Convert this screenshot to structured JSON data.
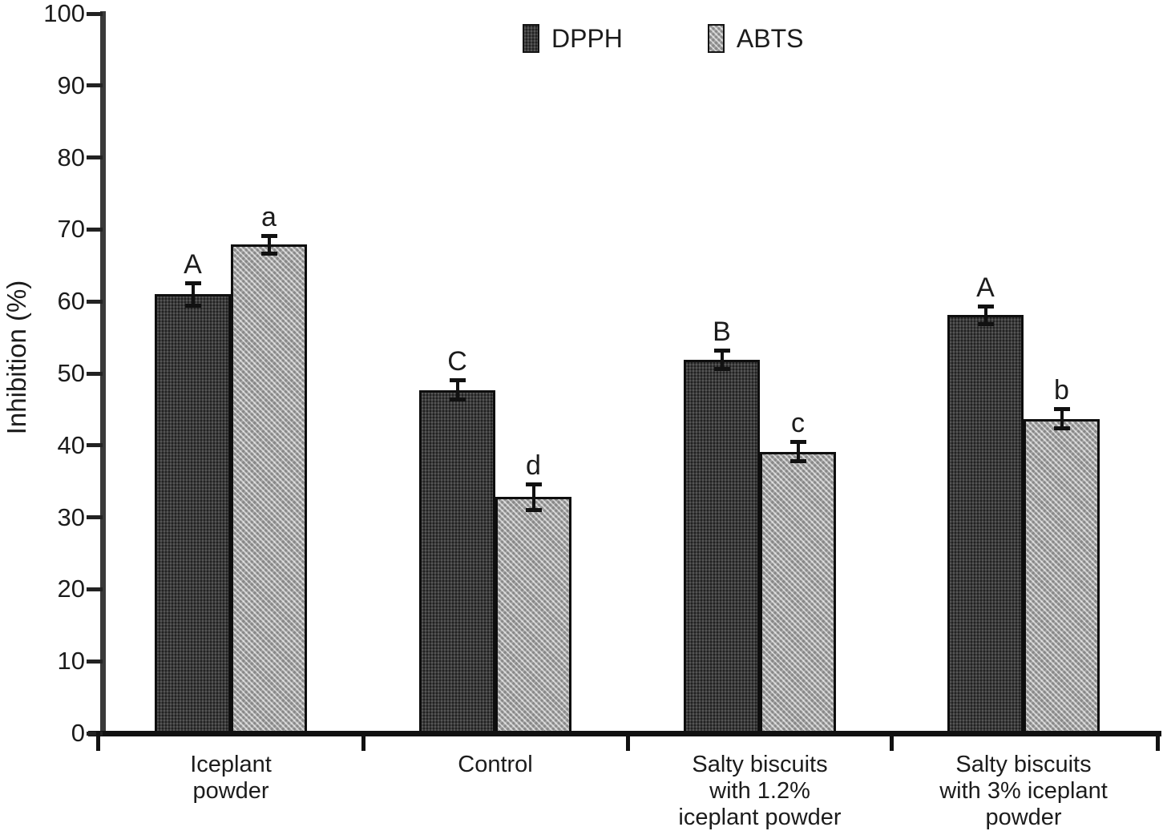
{
  "chart_data": {
    "type": "bar",
    "title": "",
    "ylabel": "Inhibition (%)",
    "xlabel": "",
    "ylim": [
      0,
      100
    ],
    "ytick_interval": 10,
    "yticks": [
      0,
      10,
      20,
      30,
      40,
      50,
      60,
      70,
      80,
      90,
      100
    ],
    "grid": false,
    "legend_position": "top-center",
    "categories": [
      "Iceplant powder",
      "Control",
      "Salty biscuits with 1.2% iceplant powder",
      "Salty biscuits with 3% iceplant powder"
    ],
    "category_label_lines": [
      [
        "Iceplant",
        "powder"
      ],
      [
        "Control"
      ],
      [
        "Salty biscuits",
        "with 1.2%",
        "iceplant powder"
      ],
      [
        "Salty biscuits",
        "with 3% iceplant",
        "powder"
      ]
    ],
    "series": [
      {
        "name": "DPPH",
        "color": "#2e2e2e",
        "values": [
          61.0,
          47.7,
          51.9,
          58.1
        ],
        "errors": [
          1.6,
          1.4,
          1.3,
          1.3
        ],
        "sig_letters": [
          "A",
          "C",
          "B",
          "A"
        ]
      },
      {
        "name": "ABTS",
        "color": "#b4b4b4",
        "values": [
          67.9,
          32.8,
          39.1,
          43.7
        ],
        "errors": [
          1.3,
          1.8,
          1.4,
          1.4
        ],
        "sig_letters": [
          "a",
          "d",
          "c",
          "b"
        ]
      }
    ]
  }
}
